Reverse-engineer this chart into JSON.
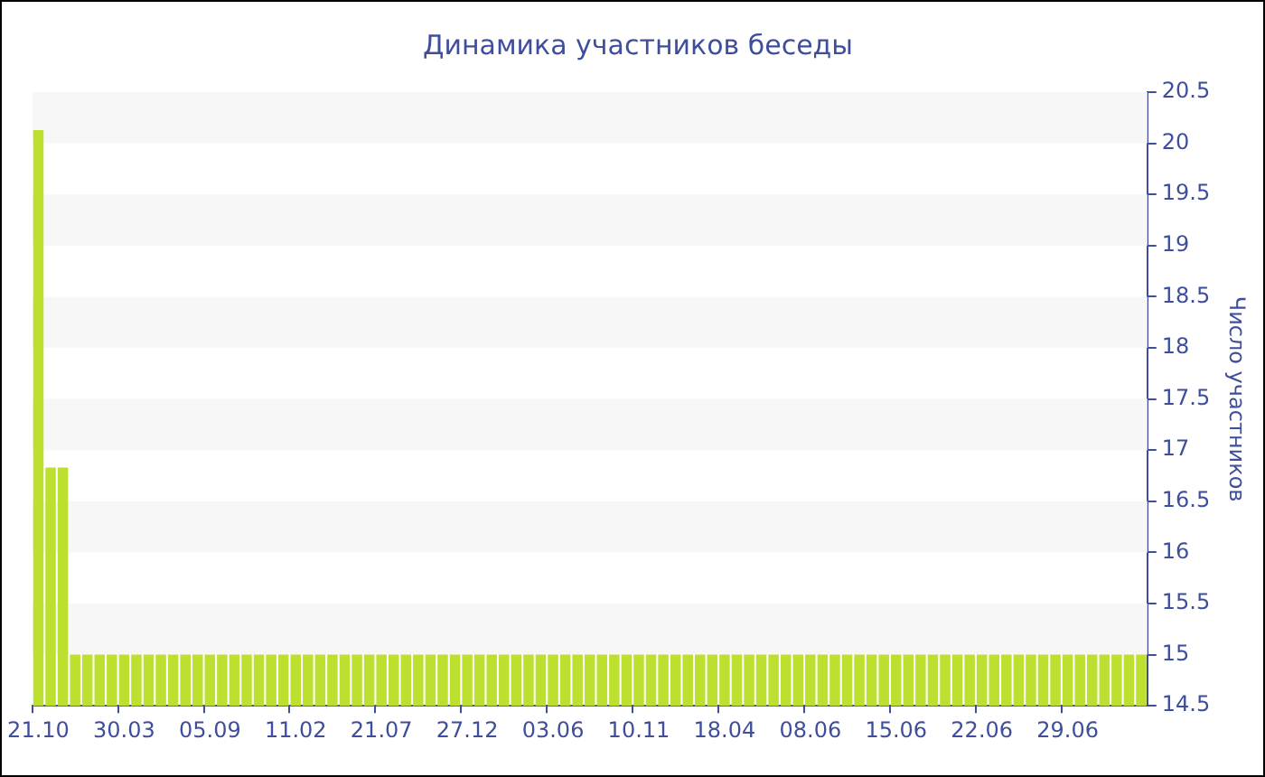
{
  "chart_data": {
    "type": "bar",
    "title": "Динамика участников беседы",
    "ylabel": "Число участников",
    "categories": [
      "21.10",
      null,
      null,
      null,
      null,
      null,
      null,
      "30.03",
      null,
      null,
      null,
      null,
      null,
      null,
      "05.09",
      null,
      null,
      null,
      null,
      null,
      null,
      "11.02",
      null,
      null,
      null,
      null,
      null,
      null,
      "21.07",
      null,
      null,
      null,
      null,
      null,
      null,
      "27.12",
      null,
      null,
      null,
      null,
      null,
      null,
      "03.06",
      null,
      null,
      null,
      null,
      null,
      null,
      "10.11",
      null,
      null,
      null,
      null,
      null,
      null,
      "18.04",
      null,
      null,
      null,
      null,
      null,
      null,
      "08.06",
      null,
      null,
      null,
      null,
      null,
      null,
      "15.06",
      null,
      null,
      null,
      null,
      null,
      null,
      "22.06",
      null,
      null,
      null,
      null,
      null,
      null,
      "29.06",
      null,
      null,
      null,
      null,
      null,
      null
    ],
    "values": [
      20.13,
      16.83,
      16.83,
      15,
      15,
      15,
      15,
      15,
      15,
      15,
      15,
      15,
      15,
      15,
      15,
      15,
      15,
      15,
      15,
      15,
      15,
      15,
      15,
      15,
      15,
      15,
      15,
      15,
      15,
      15,
      15,
      15,
      15,
      15,
      15,
      15,
      15,
      15,
      15,
      15,
      15,
      15,
      15,
      15,
      15,
      15,
      15,
      15,
      15,
      15,
      15,
      15,
      15,
      15,
      15,
      15,
      15,
      15,
      15,
      15,
      15,
      15,
      15,
      15,
      15,
      15,
      15,
      15,
      15,
      15,
      15,
      15,
      15,
      15,
      15,
      15,
      15,
      15,
      15,
      15,
      15,
      15,
      15,
      15,
      15,
      15,
      15,
      15,
      15,
      15,
      15
    ],
    "color": "#bde030",
    "ylim": [
      14.5,
      20.5
    ],
    "yticks": [
      14.5,
      15,
      15.5,
      16,
      16.5,
      17,
      17.5,
      18,
      18.5,
      19,
      19.5,
      20,
      20.5
    ],
    "legend": false
  }
}
